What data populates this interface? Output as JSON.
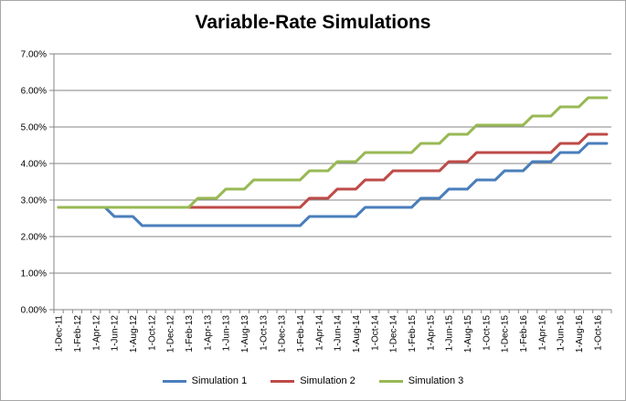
{
  "chart_data": {
    "type": "line",
    "title": "Variable-Rate Simulations",
    "xlabel": "",
    "ylabel": "",
    "ylim": [
      0,
      0.07
    ],
    "y_ticks": [
      "0.00%",
      "1.00%",
      "2.00%",
      "3.00%",
      "4.00%",
      "5.00%",
      "6.00%",
      "7.00%"
    ],
    "grid": "horizontal",
    "legend_position": "bottom",
    "categories": [
      "1-Dec-11",
      "1-Jan-12",
      "1-Feb-12",
      "1-Mar-12",
      "1-Apr-12",
      "1-May-12",
      "1-Jun-12",
      "1-Jul-12",
      "1-Aug-12",
      "1-Sep-12",
      "1-Oct-12",
      "1-Nov-12",
      "1-Dec-12",
      "1-Jan-13",
      "1-Feb-13",
      "1-Mar-13",
      "1-Apr-13",
      "1-May-13",
      "1-Jun-13",
      "1-Jul-13",
      "1-Aug-13",
      "1-Sep-13",
      "1-Oct-13",
      "1-Nov-13",
      "1-Dec-13",
      "1-Jan-14",
      "1-Feb-14",
      "1-Mar-14",
      "1-Apr-14",
      "1-May-14",
      "1-Jun-14",
      "1-Jul-14",
      "1-Aug-14",
      "1-Sep-14",
      "1-Oct-14",
      "1-Nov-14",
      "1-Dec-14",
      "1-Jan-15",
      "1-Feb-15",
      "1-Mar-15",
      "1-Apr-15",
      "1-May-15",
      "1-Jun-15",
      "1-Jul-15",
      "1-Aug-15",
      "1-Sep-15",
      "1-Oct-15",
      "1-Nov-15",
      "1-Dec-15",
      "1-Jan-16",
      "1-Feb-16",
      "1-Mar-16",
      "1-Apr-16",
      "1-May-16",
      "1-Jun-16",
      "1-Jul-16",
      "1-Aug-16",
      "1-Sep-16",
      "1-Oct-16",
      "1-Nov-16"
    ],
    "tick_labels": [
      "1-Dec-11",
      "1-Feb-12",
      "1-Apr-12",
      "1-Jun-12",
      "1-Aug-12",
      "1-Oct-12",
      "1-Dec-12",
      "1-Feb-13",
      "1-Apr-13",
      "1-Jun-13",
      "1-Aug-13",
      "1-Oct-13",
      "1-Dec-13",
      "1-Feb-14",
      "1-Apr-14",
      "1-Jun-14",
      "1-Aug-14",
      "1-Oct-14",
      "1-Dec-14",
      "1-Feb-15",
      "1-Apr-15",
      "1-Jun-15",
      "1-Aug-15",
      "1-Oct-15",
      "1-Dec-15",
      "1-Feb-16",
      "1-Apr-16",
      "1-Jun-16",
      "1-Aug-16",
      "1-Oct-16"
    ],
    "series": [
      {
        "name": "Simulation 1",
        "color": "#4a7ebb",
        "values": [
          0.028,
          0.028,
          0.028,
          0.028,
          0.028,
          0.028,
          0.0255,
          0.0255,
          0.0255,
          0.023,
          0.023,
          0.023,
          0.023,
          0.023,
          0.023,
          0.023,
          0.023,
          0.023,
          0.023,
          0.023,
          0.023,
          0.023,
          0.023,
          0.023,
          0.023,
          0.023,
          0.023,
          0.0255,
          0.0255,
          0.0255,
          0.0255,
          0.0255,
          0.0255,
          0.028,
          0.028,
          0.028,
          0.028,
          0.028,
          0.028,
          0.0305,
          0.0305,
          0.0305,
          0.033,
          0.033,
          0.033,
          0.0355,
          0.0355,
          0.0355,
          0.038,
          0.038,
          0.038,
          0.0405,
          0.0405,
          0.0405,
          0.043,
          0.043,
          0.043,
          0.0455,
          0.0455,
          0.0455
        ]
      },
      {
        "name": "Simulation 2",
        "color": "#be4b48",
        "values": [
          0.028,
          0.028,
          0.028,
          0.028,
          0.028,
          0.028,
          0.028,
          0.028,
          0.028,
          0.028,
          0.028,
          0.028,
          0.028,
          0.028,
          0.028,
          0.028,
          0.028,
          0.028,
          0.028,
          0.028,
          0.028,
          0.028,
          0.028,
          0.028,
          0.028,
          0.028,
          0.028,
          0.0305,
          0.0305,
          0.0305,
          0.033,
          0.033,
          0.033,
          0.0355,
          0.0355,
          0.0355,
          0.038,
          0.038,
          0.038,
          0.038,
          0.038,
          0.038,
          0.0405,
          0.0405,
          0.0405,
          0.043,
          0.043,
          0.043,
          0.043,
          0.043,
          0.043,
          0.043,
          0.043,
          0.043,
          0.0455,
          0.0455,
          0.0455,
          0.048,
          0.048,
          0.048
        ]
      },
      {
        "name": "Simulation 3",
        "color": "#98b954",
        "values": [
          0.028,
          0.028,
          0.028,
          0.028,
          0.028,
          0.028,
          0.028,
          0.028,
          0.028,
          0.028,
          0.028,
          0.028,
          0.028,
          0.028,
          0.028,
          0.0305,
          0.0305,
          0.0305,
          0.033,
          0.033,
          0.033,
          0.0355,
          0.0355,
          0.0355,
          0.0355,
          0.0355,
          0.0355,
          0.038,
          0.038,
          0.038,
          0.0405,
          0.0405,
          0.0405,
          0.043,
          0.043,
          0.043,
          0.043,
          0.043,
          0.043,
          0.0455,
          0.0455,
          0.0455,
          0.048,
          0.048,
          0.048,
          0.0505,
          0.0505,
          0.0505,
          0.0505,
          0.0505,
          0.0505,
          0.053,
          0.053,
          0.053,
          0.0555,
          0.0555,
          0.0555,
          0.058,
          0.058,
          0.058
        ]
      }
    ]
  }
}
